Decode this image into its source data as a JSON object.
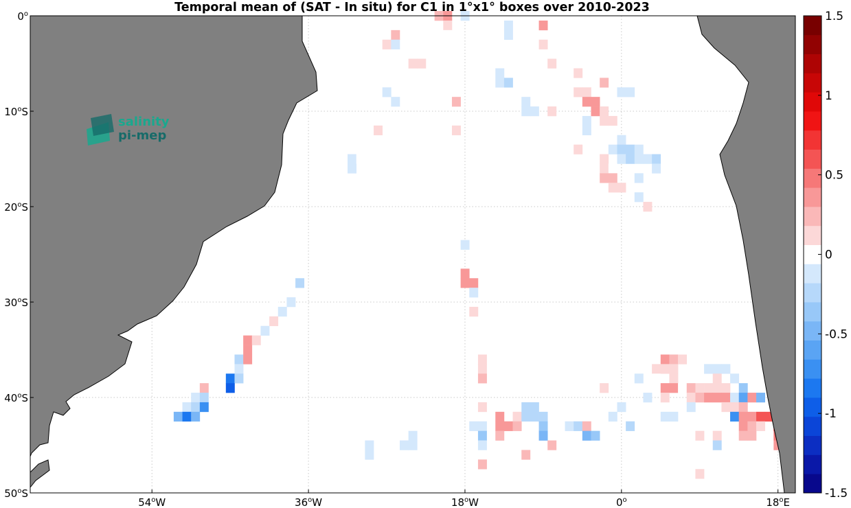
{
  "chart_data": {
    "type": "heatmap",
    "title": "Temporal mean of (SAT - In situ) for C1 in 1°x1° boxes over 2010-2023",
    "xlabel": "",
    "ylabel": "",
    "xlim": [
      -68,
      20
    ],
    "ylim": [
      -50,
      0
    ],
    "xticks": [
      {
        "value": -54,
        "label": "54",
        "deg": "o",
        "hem": "W"
      },
      {
        "value": -36,
        "label": "36",
        "deg": "o",
        "hem": "W"
      },
      {
        "value": -18,
        "label": "18",
        "deg": "o",
        "hem": "W"
      },
      {
        "value": 0,
        "label": "0",
        "deg": "o",
        "hem": ""
      },
      {
        "value": 18,
        "label": "18",
        "deg": "o",
        "hem": "E"
      }
    ],
    "yticks": [
      {
        "value": 0,
        "label": "0",
        "deg": "o",
        "hem": ""
      },
      {
        "value": -10,
        "label": "10",
        "deg": "o",
        "hem": "S"
      },
      {
        "value": -20,
        "label": "20",
        "deg": "o",
        "hem": "S"
      },
      {
        "value": -30,
        "label": "30",
        "deg": "o",
        "hem": "S"
      },
      {
        "value": -40,
        "label": "40",
        "deg": "o",
        "hem": "S"
      },
      {
        "value": -50,
        "label": "50",
        "deg": "o",
        "hem": "S"
      }
    ],
    "grid": "dotted",
    "colorbar": {
      "min": -1.5,
      "max": 1.5,
      "ticks": [
        {
          "value": 1.5,
          "label": "1.5"
        },
        {
          "value": 1,
          "label": "1"
        },
        {
          "value": 0.5,
          "label": "0.5"
        },
        {
          "value": 0,
          "label": "0"
        },
        {
          "value": -0.5,
          "label": "-0.5"
        },
        {
          "value": -1,
          "label": "-1"
        },
        {
          "value": -1.5,
          "label": "-1.5"
        }
      ],
      "colors": [
        "#08088c",
        "#0a18a8",
        "#0c2ec2",
        "#0b45d8",
        "#0e5ee8",
        "#1c78f0",
        "#3a90f2",
        "#5aa4f4",
        "#7ab6f6",
        "#98c8f8",
        "#b6d8fa",
        "#d4e8fc",
        "#ffffff",
        "#fcd8d8",
        "#fab8b8",
        "#f89898",
        "#f67878",
        "#f45454",
        "#f23434",
        "#f01414",
        "#e00808",
        "#c80606",
        "#ae0404",
        "#920202",
        "#780000"
      ]
    },
    "cells": [
      [
        -26,
        0,
        -0.05
      ],
      [
        -24,
        0,
        -0.05
      ],
      [
        -21,
        0,
        0.25
      ],
      [
        -20,
        0,
        0.35
      ],
      [
        -18,
        0,
        -0.15
      ],
      [
        -26,
        -1,
        -0.05
      ],
      [
        -20,
        -1,
        0.1
      ],
      [
        -13,
        -1,
        -0.1
      ],
      [
        -9,
        -1,
        0.3
      ],
      [
        -26,
        -2,
        0.2
      ],
      [
        -20,
        -2,
        -0.05
      ],
      [
        -13,
        -2,
        -0.1
      ],
      [
        -27,
        -3,
        0.15
      ],
      [
        -26,
        -3,
        -0.1
      ],
      [
        -9,
        -3,
        0.1
      ],
      [
        -24,
        -5,
        0.1
      ],
      [
        -23,
        -5,
        0.1
      ],
      [
        -8,
        -5,
        0.1
      ],
      [
        -14,
        -6,
        -0.1
      ],
      [
        -5,
        -6,
        0.1
      ],
      [
        -14,
        -7,
        -0.15
      ],
      [
        -13,
        -7,
        -0.25
      ],
      [
        -2,
        -7,
        0.2
      ],
      [
        -27,
        -8,
        -0.1
      ],
      [
        -5,
        -8,
        0.15
      ],
      [
        -4,
        -8,
        0.15
      ],
      [
        0,
        -8,
        -0.1
      ],
      [
        1,
        -8,
        -0.1
      ],
      [
        -26,
        -9,
        -0.1
      ],
      [
        -19,
        -9,
        0.2
      ],
      [
        -11,
        -9,
        -0.1
      ],
      [
        -4,
        -9,
        0.3
      ],
      [
        -3,
        -9,
        0.35
      ],
      [
        -11,
        -10,
        -0.1
      ],
      [
        -10,
        -10,
        -0.15
      ],
      [
        -8,
        -10,
        0.1
      ],
      [
        -3,
        -10,
        0.3
      ],
      [
        -2,
        -10,
        0.15
      ],
      [
        -4,
        -11,
        -0.1
      ],
      [
        -2,
        -11,
        0.15
      ],
      [
        -1,
        -11,
        0.1
      ],
      [
        -28,
        -12,
        0.15
      ],
      [
        -19,
        -12,
        0.15
      ],
      [
        -4,
        -12,
        -0.1
      ],
      [
        -1,
        -13,
        -0.05
      ],
      [
        0,
        -13,
        -0.1
      ],
      [
        -5,
        -14,
        0.15
      ],
      [
        -1,
        -14,
        -0.15
      ],
      [
        0,
        -14,
        -0.25
      ],
      [
        1,
        -14,
        -0.2
      ],
      [
        2,
        -14,
        -0.1
      ],
      [
        -31,
        -15,
        -0.1
      ],
      [
        -30,
        -15,
        -0.05
      ],
      [
        -2,
        -15,
        0.1
      ],
      [
        0,
        -15,
        -0.15
      ],
      [
        1,
        -15,
        -0.25
      ],
      [
        2,
        -15,
        -0.15
      ],
      [
        3,
        -15,
        -0.15
      ],
      [
        4,
        -15,
        -0.2
      ],
      [
        -31,
        -16,
        -0.1
      ],
      [
        -2,
        -16,
        0.15
      ],
      [
        -1,
        -16,
        -0.05
      ],
      [
        4,
        -16,
        -0.15
      ],
      [
        -2,
        -17,
        0.25
      ],
      [
        -1,
        -17,
        0.2
      ],
      [
        2,
        -17,
        -0.1
      ],
      [
        -1,
        -18,
        0.15
      ],
      [
        0,
        -18,
        0.15
      ],
      [
        2,
        -19,
        -0.1
      ],
      [
        3,
        -20,
        0.15
      ],
      [
        -18,
        -24,
        -0.1
      ],
      [
        -18,
        -27,
        0.35
      ],
      [
        -18,
        -28,
        0.4
      ],
      [
        -17,
        -28,
        0.35
      ],
      [
        -37,
        -28,
        -0.25
      ],
      [
        -17,
        -29,
        -0.1
      ],
      [
        -40,
        -30,
        -0.05
      ],
      [
        -38,
        -30,
        -0.1
      ],
      [
        -39,
        -31,
        -0.1
      ],
      [
        -17,
        -31,
        0.15
      ],
      [
        -40,
        -32,
        0.15
      ],
      [
        -41,
        -33,
        -0.1
      ],
      [
        -43,
        -34,
        0.35
      ],
      [
        -42,
        -34,
        0.15
      ],
      [
        -43,
        -35,
        0.35
      ],
      [
        -44,
        -36,
        -0.2
      ],
      [
        -43,
        -36,
        0.35
      ],
      [
        -16,
        -36,
        0.1
      ],
      [
        5,
        -36,
        0.3
      ],
      [
        6,
        -36,
        0.2
      ],
      [
        7,
        -36,
        0.15
      ],
      [
        -44,
        -37,
        -0.15
      ],
      [
        -16,
        -37,
        0.1
      ],
      [
        4,
        -37,
        0.1
      ],
      [
        5,
        -37,
        0.15
      ],
      [
        6,
        -37,
        0.1
      ],
      [
        9,
        -37,
        -0.05
      ],
      [
        10,
        -37,
        -0.1
      ],
      [
        11,
        -37,
        -0.1
      ],
      [
        12,
        -37,
        -0.1
      ],
      [
        -45,
        -38,
        -0.8
      ],
      [
        -44,
        -38,
        -0.25
      ],
      [
        -16,
        -38,
        0.25
      ],
      [
        2,
        -38,
        -0.1
      ],
      [
        4,
        -38,
        -0.05
      ],
      [
        6,
        -38,
        0.1
      ],
      [
        11,
        -38,
        0.15
      ],
      [
        13,
        -38,
        -0.1
      ],
      [
        -45,
        -39,
        -1.0
      ],
      [
        -48,
        -39,
        0.2
      ],
      [
        -2,
        -39,
        0.1
      ],
      [
        5,
        -39,
        0.35
      ],
      [
        6,
        -39,
        0.3
      ],
      [
        7,
        -39,
        -0.05
      ],
      [
        8,
        -39,
        0.2
      ],
      [
        9,
        -39,
        0.15
      ],
      [
        10,
        -39,
        0.15
      ],
      [
        11,
        -39,
        0.15
      ],
      [
        12,
        -39,
        0.15
      ],
      [
        14,
        -39,
        -0.35
      ],
      [
        -49,
        -40,
        -0.1
      ],
      [
        -48,
        -40,
        -0.3
      ],
      [
        3,
        -40,
        -0.1
      ],
      [
        5,
        -40,
        0.15
      ],
      [
        8,
        -40,
        0.15
      ],
      [
        9,
        -40,
        0.2
      ],
      [
        10,
        -40,
        0.3
      ],
      [
        11,
        -40,
        0.3
      ],
      [
        12,
        -40,
        0.3
      ],
      [
        13,
        -40,
        -0.15
      ],
      [
        14,
        -40,
        -0.55
      ],
      [
        15,
        -40,
        0.35
      ],
      [
        16,
        -40,
        -0.5
      ],
      [
        -50,
        -41,
        -0.1
      ],
      [
        -49,
        -41,
        -0.2
      ],
      [
        -48,
        -41,
        -0.7
      ],
      [
        -16,
        -41,
        0.15
      ],
      [
        -11,
        -41,
        -0.2
      ],
      [
        -10,
        -41,
        -0.2
      ],
      [
        0,
        -41,
        -0.1
      ],
      [
        8,
        -41,
        -0.15
      ],
      [
        12,
        -41,
        0.15
      ],
      [
        13,
        -41,
        0.15
      ],
      [
        14,
        -41,
        0.25
      ],
      [
        -51,
        -42,
        -0.45
      ],
      [
        -50,
        -42,
        -0.9
      ],
      [
        -49,
        -42,
        -0.5
      ],
      [
        -14,
        -42,
        0.3
      ],
      [
        -12,
        -42,
        0.15
      ],
      [
        -11,
        -42,
        -0.2
      ],
      [
        -10,
        -42,
        -0.25
      ],
      [
        -9,
        -42,
        -0.3
      ],
      [
        -1,
        -42,
        -0.1
      ],
      [
        5,
        -42,
        -0.15
      ],
      [
        6,
        -42,
        -0.1
      ],
      [
        13,
        -42,
        -0.7
      ],
      [
        14,
        -42,
        0.4
      ],
      [
        15,
        -42,
        0.3
      ],
      [
        16,
        -42,
        0.6
      ],
      [
        17,
        -42,
        0.6
      ],
      [
        18,
        -42,
        0.8
      ],
      [
        -17,
        -43,
        -0.15
      ],
      [
        -16,
        -43,
        -0.15
      ],
      [
        -14,
        -43,
        0.3
      ],
      [
        -13,
        -43,
        0.3
      ],
      [
        -12,
        -43,
        0.25
      ],
      [
        -9,
        -43,
        -0.35
      ],
      [
        -6,
        -43,
        -0.15
      ],
      [
        -5,
        -43,
        -0.2
      ],
      [
        -4,
        -43,
        0.2
      ],
      [
        1,
        -43,
        -0.3
      ],
      [
        11,
        -43,
        -0.05
      ],
      [
        14,
        -43,
        0.4
      ],
      [
        15,
        -43,
        0.25
      ],
      [
        16,
        -43,
        0.1
      ],
      [
        18,
        -43,
        0.85
      ],
      [
        -24,
        -44,
        -0.1
      ],
      [
        -16,
        -44,
        -0.35
      ],
      [
        -14,
        -44,
        0.2
      ],
      [
        -9,
        -44,
        -0.45
      ],
      [
        -4,
        -44,
        -0.45
      ],
      [
        -3,
        -44,
        -0.4
      ],
      [
        9,
        -44,
        0.15
      ],
      [
        11,
        -44,
        0.15
      ],
      [
        14,
        -44,
        0.2
      ],
      [
        15,
        -44,
        0.2
      ],
      [
        18,
        -44,
        0.45
      ],
      [
        -29,
        -45,
        -0.15
      ],
      [
        -25,
        -45,
        -0.1
      ],
      [
        -24,
        -45,
        -0.1
      ],
      [
        -16,
        -45,
        -0.1
      ],
      [
        -8,
        -45,
        0.25
      ],
      [
        11,
        -45,
        -0.2
      ],
      [
        18,
        -45,
        0.3
      ],
      [
        -29,
        -46,
        -0.1
      ],
      [
        -11,
        -46,
        0.2
      ],
      [
        -16,
        -47,
        0.2
      ],
      [
        9,
        -48,
        0.15
      ]
    ]
  }
}
